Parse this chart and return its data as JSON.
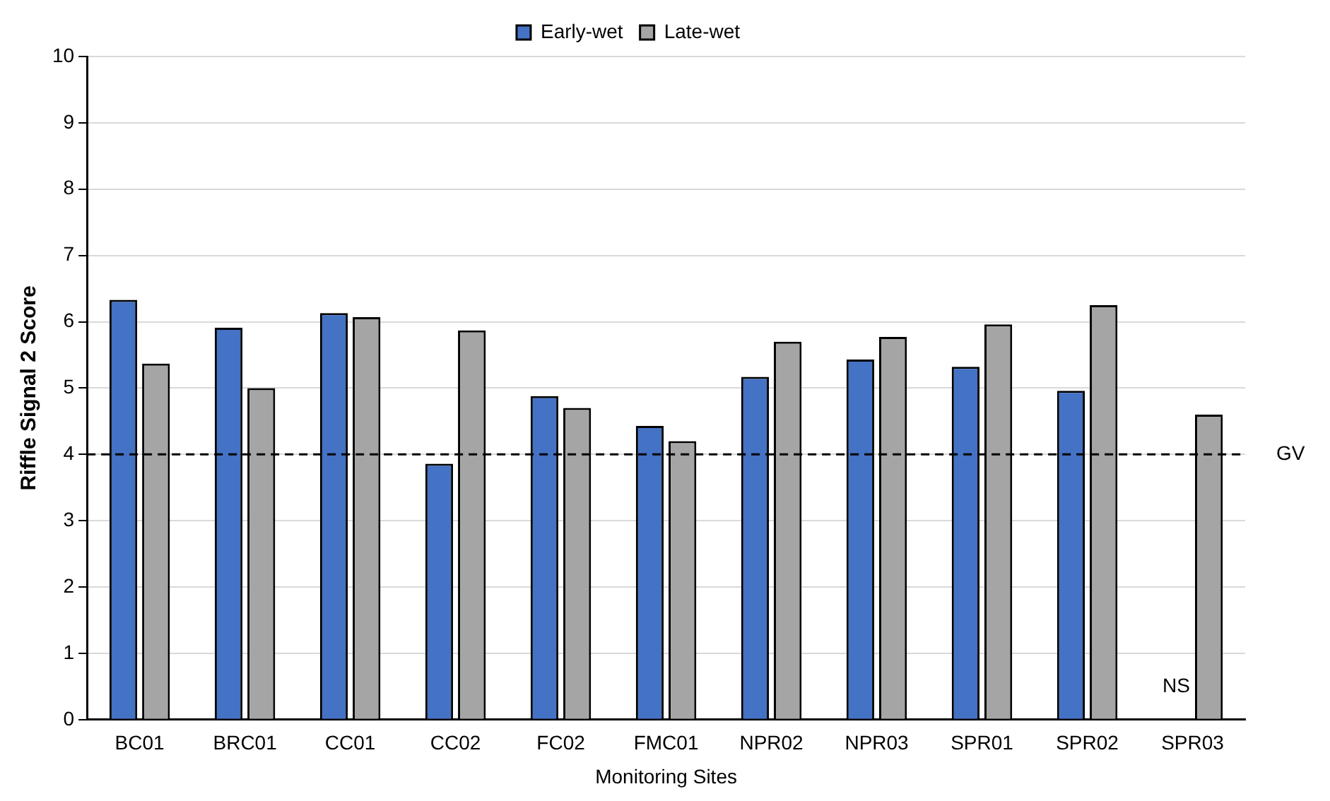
{
  "chart_data": {
    "type": "bar",
    "xlabel": "Monitoring Sites",
    "ylabel": "Riffle Signal 2 Score",
    "categories": [
      "BC01",
      "BRC01",
      "CC01",
      "CC02",
      "FC02",
      "FMC01",
      "NPR02",
      "NPR03",
      "SPR01",
      "SPR02",
      "SPR03"
    ],
    "series": [
      {
        "name": "Early-wet",
        "color": "#4472c4",
        "values": [
          6.33,
          5.91,
          6.13,
          3.86,
          4.88,
          4.43,
          5.17,
          5.43,
          5.32,
          4.96,
          null
        ]
      },
      {
        "name": "Late-wet",
        "color": "#a5a5a5",
        "values": [
          5.37,
          5.0,
          6.07,
          5.87,
          4.7,
          4.2,
          5.7,
          5.77,
          5.96,
          6.25,
          4.6
        ]
      }
    ],
    "ylim": [
      0,
      10
    ],
    "yticks": [
      0,
      1,
      2,
      3,
      4,
      5,
      6,
      7,
      8,
      9,
      10
    ],
    "grid": "y",
    "legend": "top",
    "ref_lines": [
      {
        "axis": "y",
        "value": 4,
        "label": "GV",
        "line_style": "dashed",
        "color": "#000000"
      }
    ],
    "annotations": [
      {
        "text": "NS",
        "x": "SPR03",
        "y": 0.5
      }
    ]
  }
}
